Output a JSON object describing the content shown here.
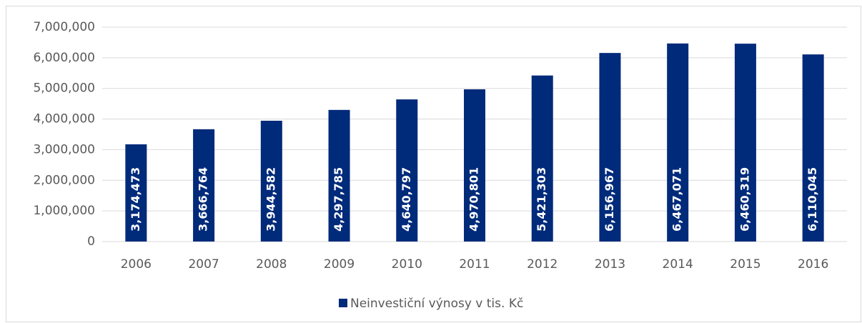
{
  "chart_data": {
    "type": "bar",
    "categories": [
      "2006",
      "2007",
      "2008",
      "2009",
      "2010",
      "2011",
      "2012",
      "2013",
      "2014",
      "2015",
      "2016"
    ],
    "series": [
      {
        "name": "Neinvestiční výnosy v tis. Kč",
        "color": "#002a7a",
        "values": [
          3174473,
          3666764,
          3944582,
          4297785,
          4640797,
          4970801,
          5421303,
          6156967,
          6467071,
          6460319,
          6110045
        ],
        "value_labels": [
          "3,174,473",
          "3,666,764",
          "3,944,582",
          "4,297,785",
          "4,640,797",
          "4,970,801",
          "5,421,303",
          "6,156,967",
          "6,467,071",
          "6,460,319",
          "6,110,045"
        ]
      }
    ],
    "ylim": [
      0,
      7000000
    ],
    "yticks": [
      0,
      {
        "value": 1000000,
        "label": "1,000,000"
      },
      {
        "value": 2000000,
        "label": "2,000,000"
      },
      {
        "value": 3000000,
        "label": "3,000,000"
      },
      {
        "value": 4000000,
        "label": "4,000,000"
      },
      {
        "value": 5000000,
        "label": "5,000,000"
      },
      {
        "value": 6000000,
        "label": "6,000,000"
      },
      {
        "value": 7000000,
        "label": "7,000,000"
      }
    ],
    "grid": true,
    "legend": "bottom"
  }
}
